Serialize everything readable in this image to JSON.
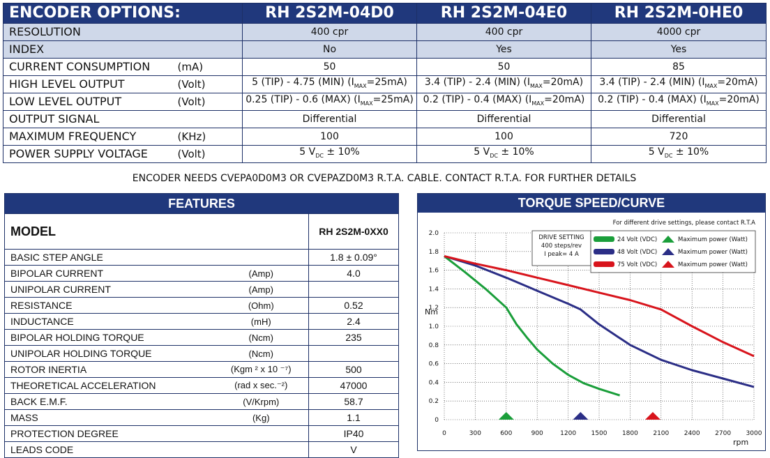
{
  "encoder": {
    "title": "ENCODER OPTIONS:",
    "models": [
      "RH 2S2M-04D0",
      "RH 2S2M-04E0",
      "RH 2S2M-0HE0"
    ],
    "rows": [
      {
        "label": "RESOLUTION",
        "unit": "",
        "values": [
          "400 cpr",
          "400 cpr",
          "4000 cpr"
        ]
      },
      {
        "label": "INDEX",
        "unit": "",
        "values": [
          "No",
          "Yes",
          "Yes"
        ]
      },
      {
        "label": "CURRENT CONSUMPTION",
        "unit": "(mA)",
        "values": [
          "50",
          "50",
          "85"
        ]
      },
      {
        "label": "HIGH LEVEL OUTPUT",
        "unit": "(Volt)",
        "values": [
          {
            "a": "5 (TIP) - 4.75 (MIN) (I",
            "sub": "MAX",
            "b": "=25mA)"
          },
          {
            "a": "3.4 (TIP) - 2.4 (MIN) (I",
            "sub": "MAX",
            "b": "=20mA)"
          },
          {
            "a": "3.4 (TIP) - 2.4 (MIN) (I",
            "sub": "MAX",
            "b": "=20mA)"
          }
        ]
      },
      {
        "label": "LOW LEVEL OUTPUT",
        "unit": "(Volt)",
        "values": [
          {
            "a": "0.25 (TIP) - 0.6 (MAX) (I",
            "sub": "MAX",
            "b": "=25mA)"
          },
          {
            "a": "0.2 (TIP) - 0.4 (MAX) (I",
            "sub": "MAX",
            "b": "=20mA)"
          },
          {
            "a": "0.2 (TIP) - 0.4 (MAX) (I",
            "sub": "MAX",
            "b": "=20mA)"
          }
        ]
      },
      {
        "label": "OUTPUT SIGNAL",
        "unit": "",
        "values": [
          "Differential",
          "Differential",
          "Differential"
        ]
      },
      {
        "label": "MAXIMUM FREQUENCY",
        "unit": "(KHz)",
        "values": [
          "100",
          "100",
          "720"
        ]
      },
      {
        "label": "POWER SUPPLY VOLTAGE",
        "unit": "(Volt)",
        "values": [
          {
            "a": "5 V",
            "sub": "DC",
            "b": " ± 10%"
          },
          {
            "a": "5 V",
            "sub": "DC",
            "b": " ± 10%"
          },
          {
            "a": "5 V",
            "sub": "DC",
            "b": " ± 10%"
          }
        ]
      }
    ]
  },
  "note": "ENCODER NEEDS CVEPA0D0M3 OR CVEPAZD0M3 R.T.A. CABLE. CONTACT R.T.A. FOR FURTHER DETAILS",
  "features": {
    "title": "FEATURES",
    "model_label": "MODEL",
    "model_value": "RH 2S2M-0XX0",
    "rows": [
      {
        "label": "BASIC STEP ANGLE",
        "unit": "",
        "value": "1.8 ± 0.09°"
      },
      {
        "label": "BIPOLAR CURRENT",
        "unit": "(Amp)",
        "value": "4.0"
      },
      {
        "label": "UNIPOLAR CURRENT",
        "unit": "(Amp)",
        "value": ""
      },
      {
        "label": "RESISTANCE",
        "unit": "(Ohm)",
        "value": "0.52"
      },
      {
        "label": "INDUCTANCE",
        "unit": "(mH)",
        "value": "2.4"
      },
      {
        "label": "BIPOLAR HOLDING TORQUE",
        "unit": "(Ncm)",
        "value": "235"
      },
      {
        "label": "UNIPOLAR HOLDING TORQUE",
        "unit": "(Ncm)",
        "value": ""
      },
      {
        "label": "ROTOR INERTIA",
        "unit": "(Kgm ² x 10 ⁻⁷)",
        "value": "500"
      },
      {
        "label": "THEORETICAL ACCELERATION",
        "unit": "(rad x sec.⁻²)",
        "value": "47000"
      },
      {
        "label": "BACK E.M.F.",
        "unit": "(V/Krpm)",
        "value": "58.7"
      },
      {
        "label": "MASS",
        "unit": "(Kg)",
        "value": "1.1"
      },
      {
        "label": "PROTECTION DEGREE",
        "unit": "",
        "value": "IP40"
      },
      {
        "label": "LEADS CODE",
        "unit": "",
        "value": "V"
      }
    ]
  },
  "torque": {
    "title": "TORQUE SPEED/CURVE",
    "note": "For different drive settings, please contact R.T.A",
    "drive_setting": [
      "DRIVE SETTING",
      "400 steps/rev",
      "I peak= 4 A"
    ],
    "max_power_label": "Maximum power (Watt)"
  },
  "chart_data": {
    "type": "line",
    "xlabel": "rpm",
    "ylabel": "Nm",
    "xlim": [
      0,
      3000
    ],
    "ylim": [
      0,
      2.0
    ],
    "x_ticks": [
      0,
      300,
      600,
      900,
      1200,
      1500,
      1800,
      2100,
      2400,
      2700,
      3000
    ],
    "y_ticks": [
      "0",
      "0.2",
      "0.4",
      "0.6",
      "0.8",
      "1.0",
      "1.2",
      "1.4",
      "1.6",
      "1.8",
      "2.0"
    ],
    "grid": true,
    "series": [
      {
        "name": "24 Volt (VDC)",
        "color": "#1a9e3a",
        "x": [
          0,
          200,
          400,
          600,
          700,
          800,
          900,
          1050,
          1200,
          1350,
          1500,
          1700
        ],
        "y": [
          1.75,
          1.58,
          1.4,
          1.2,
          1.02,
          0.88,
          0.75,
          0.6,
          0.48,
          0.39,
          0.33,
          0.26
        ],
        "max_power_rpm": 600
      },
      {
        "name": "48 Volt (VDC)",
        "color": "#2b2e86",
        "x": [
          0,
          300,
          600,
          900,
          1200,
          1320,
          1500,
          1800,
          2100,
          2400,
          2700,
          3000
        ],
        "y": [
          1.75,
          1.65,
          1.52,
          1.38,
          1.24,
          1.18,
          1.02,
          0.8,
          0.64,
          0.53,
          0.44,
          0.35
        ],
        "max_power_rpm": 1320
      },
      {
        "name": "75 Volt (VDC)",
        "color": "#d8141c",
        "x": [
          0,
          300,
          600,
          900,
          1200,
          1500,
          1800,
          2100,
          2400,
          2700,
          3000
        ],
        "y": [
          1.75,
          1.67,
          1.6,
          1.52,
          1.44,
          1.36,
          1.28,
          1.18,
          1.0,
          0.83,
          0.68
        ],
        "max_power_rpm": 2020
      }
    ]
  }
}
